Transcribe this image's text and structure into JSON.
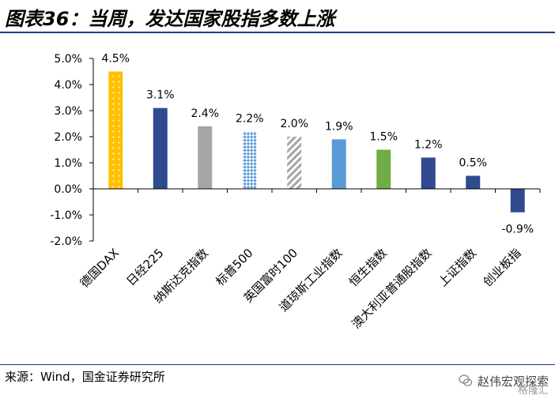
{
  "title": "图表36：当周，发达国家股指多数上涨",
  "source": "来源：Wind，国金证券研究所",
  "watermark": {
    "name": "赵伟宏观探索",
    "sub": "格隆汇"
  },
  "colors": {
    "title_rule": "#1f3c88",
    "dax": "#FFC000",
    "navy": "#2F4A8E",
    "gray": "#A6A6A6",
    "sky": "#5B9BD5",
    "green": "#70AD47",
    "light_blue": "#9DC3E6"
  },
  "chart_data": {
    "type": "bar",
    "title": "",
    "xlabel": "",
    "ylabel": "",
    "ylim": [
      -2.0,
      5.0
    ],
    "yticks": [
      "5.0%",
      "4.0%",
      "3.0%",
      "2.0%",
      "1.0%",
      "0.0%",
      "-1.0%",
      "-2.0%"
    ],
    "ytick_values": [
      5,
      4,
      3,
      2,
      1,
      0,
      -1,
      -2
    ],
    "grid": false,
    "categories": [
      "德国DAX",
      "日经225",
      "纳斯达克指数",
      "标普500",
      "英国富时100",
      "道琼斯工业指数",
      "恒生指数",
      "澳大利亚普通股指数",
      "上证指数",
      "创业板指"
    ],
    "values": [
      4.5,
      3.1,
      2.4,
      2.2,
      2.0,
      1.9,
      1.5,
      1.2,
      0.5,
      -0.9
    ],
    "labels": [
      "4.5%",
      "3.1%",
      "2.4%",
      "2.2%",
      "2.0%",
      "1.9%",
      "1.5%",
      "1.2%",
      "0.5%",
      "-0.9%"
    ],
    "bar_styles": [
      "dotted-yellow",
      "navy",
      "gray",
      "checker-blue",
      "stripe-gray",
      "sky",
      "green",
      "navy",
      "navy",
      "navy"
    ]
  }
}
